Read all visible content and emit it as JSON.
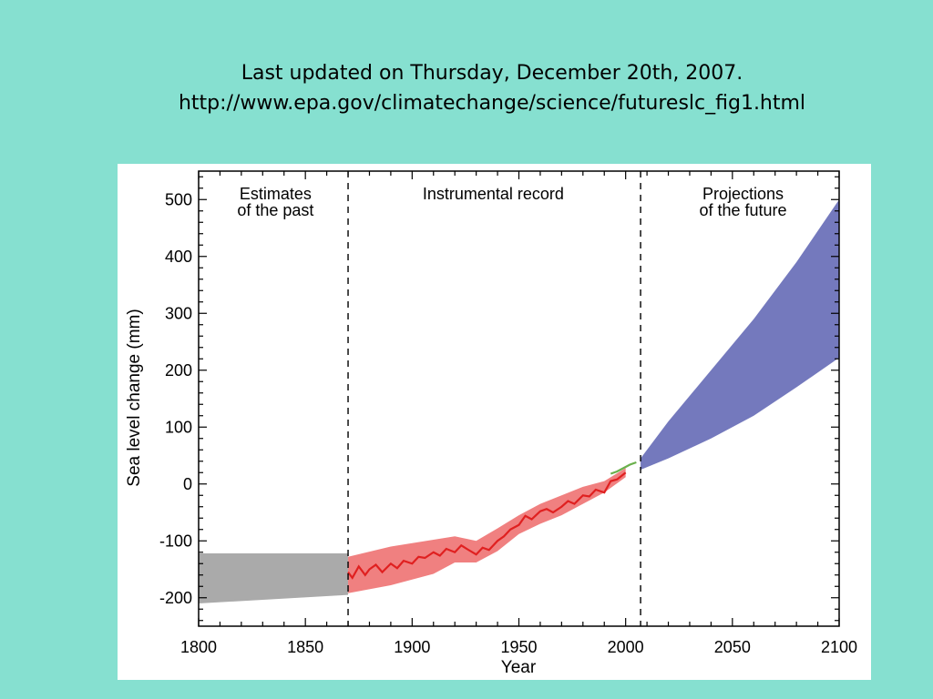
{
  "slide": {
    "title_line1": "Last updated on Thursday, December 20th, 2007.",
    "title_line2": "http://www.epa.gov/climatechange/science/futureslc_fig1.html"
  },
  "chart_data": {
    "type": "area",
    "title": "",
    "xlabel": "Year",
    "ylabel": "Sea level change (mm)",
    "xlim": [
      1800,
      2100
    ],
    "ylim": [
      -250,
      550
    ],
    "xticks": [
      1800,
      1850,
      1900,
      1950,
      2000,
      2050,
      2100
    ],
    "yticks": [
      -200,
      -100,
      0,
      100,
      200,
      300,
      400,
      500
    ],
    "grid": false,
    "legend": "none",
    "dividers": [
      1870,
      2007
    ],
    "regions": [
      {
        "lines": [
          "Estimates",
          "of the past"
        ],
        "center_x": 1836
      },
      {
        "lines": [
          "Instrumental record"
        ],
        "center_x": 1938
      },
      {
        "lines": [
          "Projections",
          "of the future"
        ],
        "center_x": 2055
      }
    ],
    "series": [
      {
        "color": "#aaaaaa",
        "type": "band",
        "x": [
          1800,
          1870
        ],
        "upper": [
          -122,
          -122
        ],
        "lower": [
          -210,
          -195
        ]
      },
      {
        "color": "#f08080",
        "type": "band",
        "x": [
          1870,
          1890,
          1910,
          1920,
          1930,
          1940,
          1950,
          1960,
          1970,
          1980,
          1990,
          2000
        ],
        "upper": [
          -128,
          -110,
          -98,
          -92,
          -100,
          -78,
          -55,
          -35,
          -20,
          -5,
          5,
          28
        ],
        "lower": [
          -192,
          -178,
          -158,
          -138,
          -138,
          -118,
          -88,
          -70,
          -55,
          -35,
          -15,
          12
        ]
      },
      {
        "color": "#e02020",
        "type": "line",
        "x": [
          1870,
          1872,
          1875,
          1878,
          1880,
          1883,
          1886,
          1890,
          1893,
          1896,
          1900,
          1903,
          1906,
          1910,
          1913,
          1916,
          1920,
          1923,
          1926,
          1930,
          1933,
          1936,
          1940,
          1943,
          1946,
          1950,
          1953,
          1956,
          1960,
          1963,
          1966,
          1970,
          1973,
          1976,
          1980,
          1983,
          1986,
          1990,
          1993,
          1996,
          2000
        ],
        "y": [
          -155,
          -165,
          -145,
          -160,
          -150,
          -142,
          -155,
          -140,
          -148,
          -135,
          -140,
          -128,
          -130,
          -120,
          -126,
          -114,
          -120,
          -108,
          -115,
          -124,
          -112,
          -116,
          -100,
          -92,
          -80,
          -72,
          -56,
          -62,
          -48,
          -44,
          -50,
          -40,
          -30,
          -35,
          -20,
          -22,
          -10,
          -15,
          5,
          8,
          20
        ]
      },
      {
        "color": "#6ab04c",
        "type": "line",
        "x": [
          1993,
          1996,
          1999,
          2002,
          2005
        ],
        "y": [
          18,
          22,
          28,
          34,
          38
        ]
      },
      {
        "color": "#7479bd",
        "type": "band",
        "x": [
          2007,
          2020,
          2040,
          2060,
          2080,
          2100
        ],
        "upper": [
          45,
          110,
          200,
          290,
          390,
          500
        ],
        "lower": [
          25,
          45,
          80,
          120,
          170,
          222
        ]
      }
    ]
  }
}
